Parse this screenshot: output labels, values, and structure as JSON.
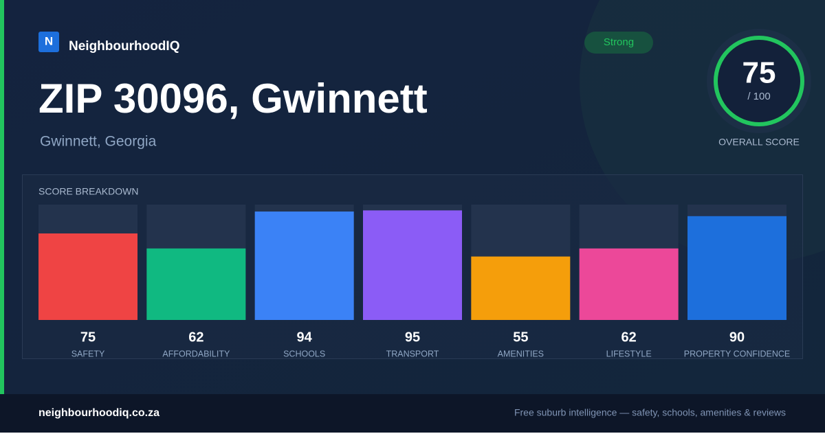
{
  "brand": {
    "logo_letter": "N",
    "name": "NeighbourhoodIQ"
  },
  "badge": "Strong",
  "header": {
    "title": "ZIP 30096, Gwinnett",
    "subtitle": "Gwinnett, Georgia"
  },
  "overall": {
    "score": 75,
    "max_label": "/ 100",
    "label": "OVERALL SCORE"
  },
  "chart_data": {
    "type": "bar",
    "title": "SCORE BREAKDOWN",
    "categories": [
      "SAFETY",
      "AFFORDABILITY",
      "SCHOOLS",
      "TRANSPORT",
      "AMENITIES",
      "LIFESTYLE",
      "PROPERTY CONFIDENCE"
    ],
    "values": [
      75,
      62,
      94,
      95,
      55,
      62,
      90
    ],
    "colors": [
      "#ef4444",
      "#10b981",
      "#3b82f6",
      "#8b5cf6",
      "#f59e0b",
      "#ec4899",
      "#1d6fdc"
    ],
    "ylim": [
      0,
      100
    ]
  },
  "footer": {
    "site": "neighbourhoodiq.co.za",
    "tagline": "Free suburb intelligence — safety, schools, amenities & reviews"
  }
}
